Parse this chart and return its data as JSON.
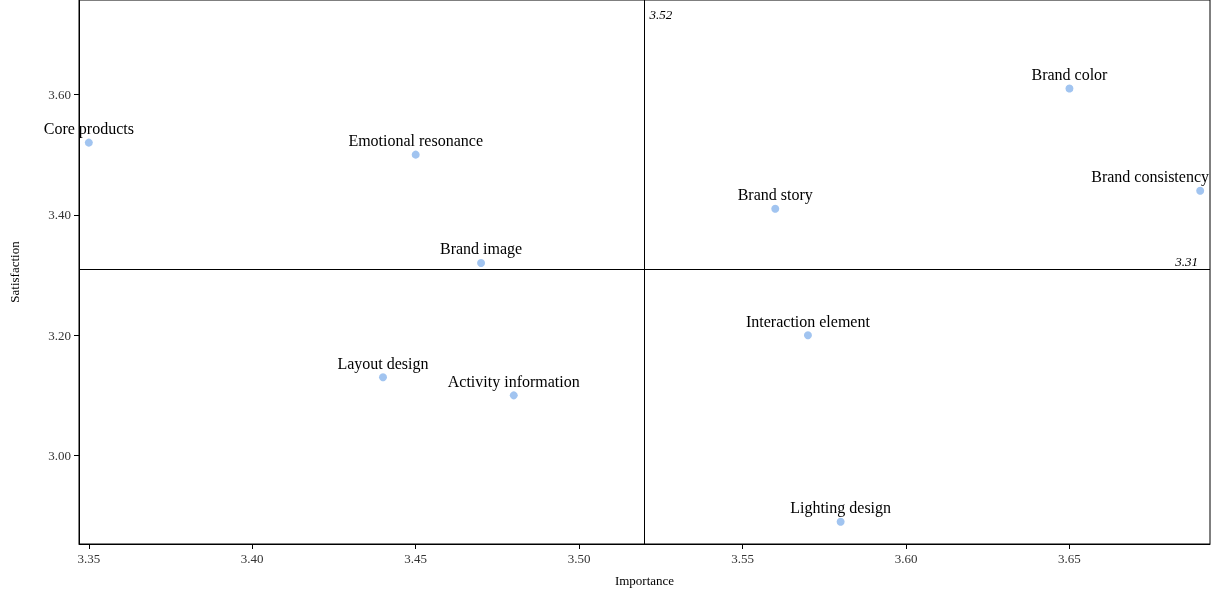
{
  "chart_data": {
    "type": "scatter",
    "xlabel": "Importance",
    "ylabel": "Satisfaction",
    "x": [
      3.35,
      3.45,
      3.47,
      3.44,
      3.48,
      3.56,
      3.57,
      3.58,
      3.65,
      3.69
    ],
    "values": [
      3.52,
      3.5,
      3.32,
      3.13,
      3.1,
      3.41,
      3.2,
      2.89,
      3.61,
      3.44
    ],
    "color": "#a1c4f0",
    "marker": "circle",
    "grid": false,
    "xlim": [
      3.347,
      3.693
    ],
    "ylim": [
      2.853,
      3.757
    ],
    "xticks": [
      {
        "value": 3.35,
        "label": "3.35"
      },
      {
        "value": 3.4,
        "label": "3.40"
      },
      {
        "value": 3.45,
        "label": "3.45"
      },
      {
        "value": 3.5,
        "label": "3.50"
      },
      {
        "value": 3.55,
        "label": "3.55"
      },
      {
        "value": 3.6,
        "label": "3.60"
      },
      {
        "value": 3.65,
        "label": "3.65"
      }
    ],
    "yticks": [
      {
        "value": 3.0,
        "label": "3.00"
      },
      {
        "value": 3.2,
        "label": "3.20"
      },
      {
        "value": 3.4,
        "label": "3.40"
      },
      {
        "value": 3.6,
        "label": "3.60"
      }
    ],
    "ref_lines": [
      {
        "axis": "x",
        "value": 3.52,
        "label": "3.52",
        "color": "#000000"
      },
      {
        "axis": "y",
        "value": 3.31,
        "label": "3.31",
        "color": "#000000"
      }
    ],
    "annotations": [
      {
        "text": "Core products",
        "x": 3.35,
        "y": 3.52
      },
      {
        "text": "Emotional resonance",
        "x": 3.45,
        "y": 3.5
      },
      {
        "text": "Brand image",
        "x": 3.47,
        "y": 3.32
      },
      {
        "text": "Layout design",
        "x": 3.44,
        "y": 3.13
      },
      {
        "text": "Activity information",
        "x": 3.48,
        "y": 3.1
      },
      {
        "text": "Brand story",
        "x": 3.56,
        "y": 3.41
      },
      {
        "text": "Interaction element",
        "x": 3.57,
        "y": 3.2
      },
      {
        "text": "Lighting design",
        "x": 3.58,
        "y": 2.89
      },
      {
        "text": "Brand color",
        "x": 3.65,
        "y": 3.61
      },
      {
        "text": "Brand consistency",
        "x": 3.69,
        "y": 3.44
      }
    ]
  }
}
